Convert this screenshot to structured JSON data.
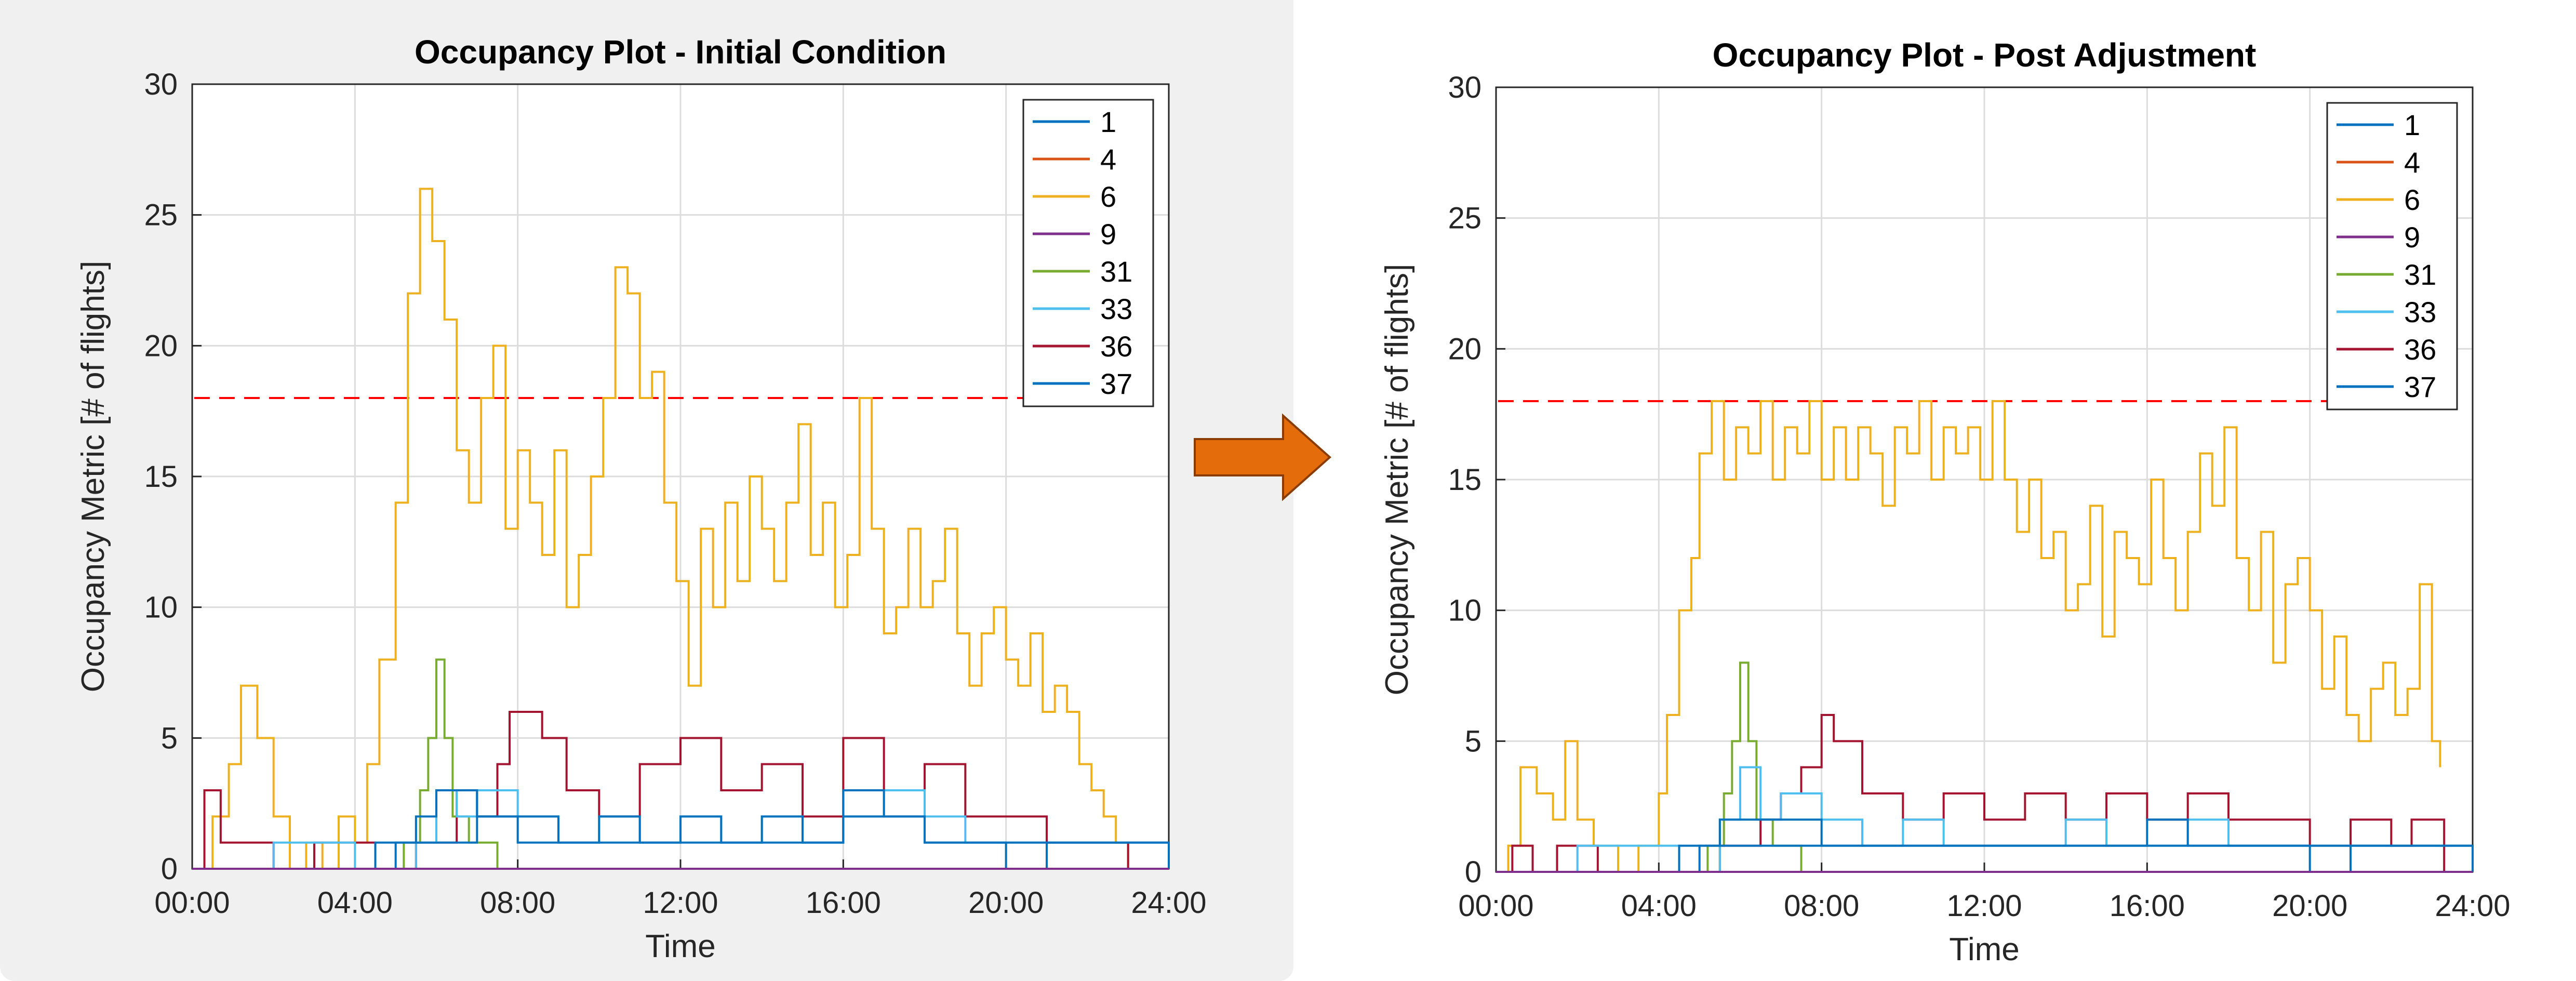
{
  "colors": {
    "s1": "#0072BD",
    "s4": "#D95319",
    "s6": "#EDB120",
    "s9": "#7E2F8E",
    "s31": "#77AC30",
    "s33": "#4DBEEE",
    "s36": "#A2142F",
    "s37": "#0072BD",
    "threshold": "#FF0000",
    "arrow": "#E46C0A",
    "grid": "#DCDCDC"
  },
  "arrow_icon": "right-arrow-icon",
  "chart_data": [
    {
      "type": "line",
      "title": "Occupancy Plot - Initial Condition",
      "xlabel": "Time",
      "ylabel": "Occupancy Metric [# of flights]",
      "xlim": [
        0,
        24
      ],
      "ylim": [
        0,
        30
      ],
      "xticks": [
        "00:00",
        "04:00",
        "08:00",
        "12:00",
        "16:00",
        "20:00",
        "24:00"
      ],
      "yticks": [
        0,
        5,
        10,
        15,
        20,
        25,
        30
      ],
      "grid": true,
      "legend_position": "top-right",
      "legend": [
        "1",
        "4",
        "6",
        "9",
        "31",
        "33",
        "36",
        "37"
      ],
      "threshold": 18,
      "series": [
        {
          "name": "6",
          "x": [
            0,
            0.5,
            0.9,
            1.2,
            1.6,
            2.0,
            2.4,
            2.8,
            3.2,
            3.6,
            4.0,
            4.3,
            4.6,
            5.0,
            5.3,
            5.6,
            5.9,
            6.2,
            6.5,
            6.8,
            7.1,
            7.4,
            7.7,
            8.0,
            8.3,
            8.6,
            8.9,
            9.2,
            9.5,
            9.8,
            10.1,
            10.4,
            10.7,
            11.0,
            11.3,
            11.6,
            11.9,
            12.2,
            12.5,
            12.8,
            13.1,
            13.4,
            13.7,
            14.0,
            14.3,
            14.6,
            14.9,
            15.2,
            15.5,
            15.8,
            16.1,
            16.4,
            16.7,
            17.0,
            17.3,
            17.6,
            17.9,
            18.2,
            18.5,
            18.8,
            19.1,
            19.4,
            19.7,
            20.0,
            20.3,
            20.6,
            20.9,
            21.2,
            21.5,
            21.8,
            22.1,
            22.4,
            22.7,
            23.0,
            23.3,
            23.6
          ],
          "values": [
            0,
            2,
            4,
            7,
            5,
            2,
            0,
            1,
            0,
            2,
            1,
            4,
            8,
            14,
            22,
            26,
            24,
            21,
            16,
            14,
            18,
            20,
            13,
            16,
            14,
            12,
            16,
            10,
            12,
            15,
            18,
            23,
            22,
            18,
            19,
            14,
            11,
            7,
            13,
            10,
            14,
            11,
            15,
            13,
            11,
            14,
            17,
            12,
            14,
            10,
            12,
            18,
            13,
            9,
            10,
            13,
            10,
            11,
            13,
            9,
            7,
            9,
            10,
            8,
            7,
            9,
            6,
            7,
            6,
            4,
            3,
            2,
            1,
            0,
            0,
            0
          ]
        },
        {
          "name": "31",
          "x": [
            0,
            4.5,
            5.2,
            5.6,
            5.8,
            6.0,
            6.2,
            6.4,
            6.8,
            7.5,
            24
          ],
          "values": [
            0,
            0,
            1,
            3,
            5,
            8,
            5,
            2,
            1,
            0,
            0
          ]
        },
        {
          "name": "36",
          "x": [
            0,
            0.3,
            0.7,
            1.4,
            2.0,
            3.0,
            4.5,
            5.5,
            6.5,
            7.0,
            7.5,
            7.8,
            8.2,
            8.6,
            9.2,
            10.0,
            11.0,
            12.0,
            13.0,
            14.0,
            15.0,
            16.0,
            16.5,
            17.0,
            18.0,
            19.0,
            20.0,
            21.0,
            22.0,
            23.0,
            24.0
          ],
          "values": [
            0,
            3,
            1,
            1,
            0,
            1,
            0,
            1,
            3,
            2,
            4,
            6,
            6,
            5,
            3,
            2,
            4,
            5,
            3,
            4,
            2,
            5,
            5,
            3,
            4,
            2,
            2,
            1,
            1,
            0,
            0
          ]
        },
        {
          "name": "33",
          "x": [
            0,
            2,
            4,
            5.5,
            6.0,
            6.5,
            7.0,
            8.0,
            9.0,
            10.0,
            11.0,
            12.0,
            13.0,
            14.0,
            15.0,
            16.0,
            17.0,
            18.0,
            19.0,
            20.0,
            21.0,
            22.0,
            23.0,
            24.0
          ],
          "values": [
            0,
            1,
            0,
            1,
            3,
            2,
            3,
            2,
            1,
            2,
            1,
            2,
            1,
            2,
            1,
            2,
            3,
            2,
            1,
            1,
            1,
            1,
            1,
            0
          ]
        },
        {
          "name": "1",
          "x": [
            0,
            3.5,
            4.5,
            5.5,
            6.0,
            7.0,
            8.0,
            9.0,
            10.0,
            11.0,
            12.0,
            13.0,
            14.0,
            15.0,
            16.0,
            17.0,
            18.0,
            19.0,
            20.0,
            21.0,
            22.0,
            23.0,
            24.0
          ],
          "values": [
            0,
            0,
            1,
            2,
            3,
            2,
            2,
            1,
            2,
            1,
            2,
            1,
            2,
            1,
            3,
            2,
            1,
            1,
            0,
            1,
            1,
            1,
            0
          ]
        },
        {
          "name": "37",
          "x": [
            0,
            4.0,
            5.0,
            6.0,
            7.0,
            8.0,
            10.0,
            12.0,
            14.0,
            16.0,
            18.0,
            20.0,
            22.0,
            24.0
          ],
          "values": [
            0,
            0,
            1,
            1,
            2,
            1,
            1,
            1,
            1,
            2,
            1,
            1,
            1,
            0
          ]
        },
        {
          "name": "4",
          "x": [
            0,
            24
          ],
          "values": [
            0,
            0
          ]
        },
        {
          "name": "9",
          "x": [
            0,
            24
          ],
          "values": [
            0,
            0
          ]
        }
      ]
    },
    {
      "type": "line",
      "title": "Occupancy Plot - Post Adjustment",
      "xlabel": "Time",
      "ylabel": "Occupancy Metric [# of flights]",
      "xlim": [
        0,
        24
      ],
      "ylim": [
        0,
        30
      ],
      "xticks": [
        "00:00",
        "04:00",
        "08:00",
        "12:00",
        "16:00",
        "20:00",
        "24:00"
      ],
      "yticks": [
        0,
        5,
        10,
        15,
        20,
        25,
        30
      ],
      "grid": true,
      "legend_position": "top-right",
      "legend": [
        "1",
        "4",
        "6",
        "9",
        "31",
        "33",
        "36",
        "37"
      ],
      "threshold": 18,
      "series": [
        {
          "name": "6",
          "x": [
            0,
            0.3,
            0.6,
            1.0,
            1.4,
            1.7,
            2.0,
            2.4,
            3.0,
            3.5,
            4.0,
            4.2,
            4.5,
            4.8,
            5.0,
            5.3,
            5.6,
            5.9,
            6.2,
            6.5,
            6.8,
            7.1,
            7.4,
            7.7,
            8.0,
            8.3,
            8.6,
            8.9,
            9.2,
            9.5,
            9.8,
            10.1,
            10.4,
            10.7,
            11.0,
            11.3,
            11.6,
            11.9,
            12.2,
            12.5,
            12.8,
            13.1,
            13.4,
            13.7,
            14.0,
            14.3,
            14.6,
            14.9,
            15.2,
            15.5,
            15.8,
            16.1,
            16.4,
            16.7,
            17.0,
            17.3,
            17.6,
            17.9,
            18.2,
            18.5,
            18.8,
            19.1,
            19.4,
            19.7,
            20.0,
            20.3,
            20.6,
            20.9,
            21.2,
            21.5,
            21.8,
            22.1,
            22.4,
            22.7,
            23.0,
            23.2
          ],
          "values": [
            0,
            1,
            4,
            3,
            2,
            5,
            2,
            1,
            0,
            1,
            3,
            6,
            10,
            12,
            16,
            18,
            15,
            17,
            16,
            18,
            15,
            17,
            16,
            18,
            15,
            17,
            15,
            17,
            16,
            14,
            17,
            16,
            18,
            15,
            17,
            16,
            17,
            15,
            18,
            15,
            13,
            15,
            12,
            13,
            10,
            11,
            14,
            9,
            13,
            12,
            11,
            15,
            12,
            10,
            13,
            16,
            14,
            17,
            12,
            10,
            13,
            8,
            11,
            12,
            10,
            7,
            9,
            6,
            5,
            7,
            8,
            6,
            7,
            11,
            5,
            4
          ]
        },
        {
          "name": "31",
          "x": [
            0,
            4.8,
            5.2,
            5.6,
            5.8,
            6.0,
            6.2,
            6.4,
            6.8,
            7.5,
            24
          ],
          "values": [
            0,
            0,
            1,
            3,
            5,
            8,
            5,
            2,
            1,
            0,
            0
          ]
        },
        {
          "name": "36",
          "x": [
            0,
            0.4,
            0.9,
            1.5,
            2.5,
            4.5,
            5.5,
            6.5,
            7.0,
            7.5,
            8.0,
            8.3,
            8.6,
            9.0,
            10.0,
            11.0,
            12.0,
            13.0,
            14.0,
            15.0,
            16.0,
            17.0,
            18.0,
            19.0,
            20.0,
            21.0,
            22.0,
            22.5,
            23.0,
            23.3
          ],
          "values": [
            0,
            1,
            0,
            1,
            0,
            0,
            1,
            2,
            3,
            4,
            6,
            5,
            5,
            3,
            2,
            3,
            2,
            3,
            2,
            3,
            2,
            3,
            2,
            2,
            1,
            2,
            1,
            2,
            2,
            0
          ]
        },
        {
          "name": "33",
          "x": [
            0,
            2,
            4.5,
            5.5,
            6.0,
            6.5,
            7.0,
            8.0,
            9.0,
            10.0,
            11.0,
            12.0,
            13.0,
            14.0,
            15.0,
            16.0,
            17.0,
            18.0,
            19.0,
            20.0,
            21.0,
            22.0,
            23.0,
            24.0
          ],
          "values": [
            0,
            1,
            0,
            2,
            4,
            2,
            3,
            2,
            1,
            2,
            1,
            1,
            1,
            2,
            1,
            1,
            2,
            1,
            1,
            1,
            1,
            1,
            1,
            0
          ]
        },
        {
          "name": "1",
          "x": [
            0,
            3.5,
            4.5,
            5.5,
            6.0,
            7.0,
            8.0,
            9.0,
            10.0,
            11.0,
            12.0,
            13.0,
            14.0,
            15.0,
            16.0,
            17.0,
            18.0,
            19.0,
            20.0,
            21.0,
            22.0,
            23.0,
            24.0
          ],
          "values": [
            0,
            0,
            1,
            2,
            2,
            2,
            1,
            1,
            1,
            1,
            1,
            1,
            1,
            1,
            2,
            1,
            1,
            1,
            0,
            1,
            1,
            1,
            0
          ]
        },
        {
          "name": "37",
          "x": [
            0,
            4.0,
            5.0,
            6.0,
            7.0,
            8.0,
            10.0,
            12.0,
            14.0,
            16.0,
            18.0,
            20.0,
            22.0,
            24.0
          ],
          "values": [
            0,
            0,
            1,
            1,
            1,
            1,
            1,
            1,
            1,
            1,
            1,
            1,
            1,
            0
          ]
        },
        {
          "name": "4",
          "x": [
            0,
            24
          ],
          "values": [
            0,
            0
          ]
        },
        {
          "name": "9",
          "x": [
            0,
            24
          ],
          "values": [
            0,
            0
          ]
        }
      ]
    }
  ]
}
